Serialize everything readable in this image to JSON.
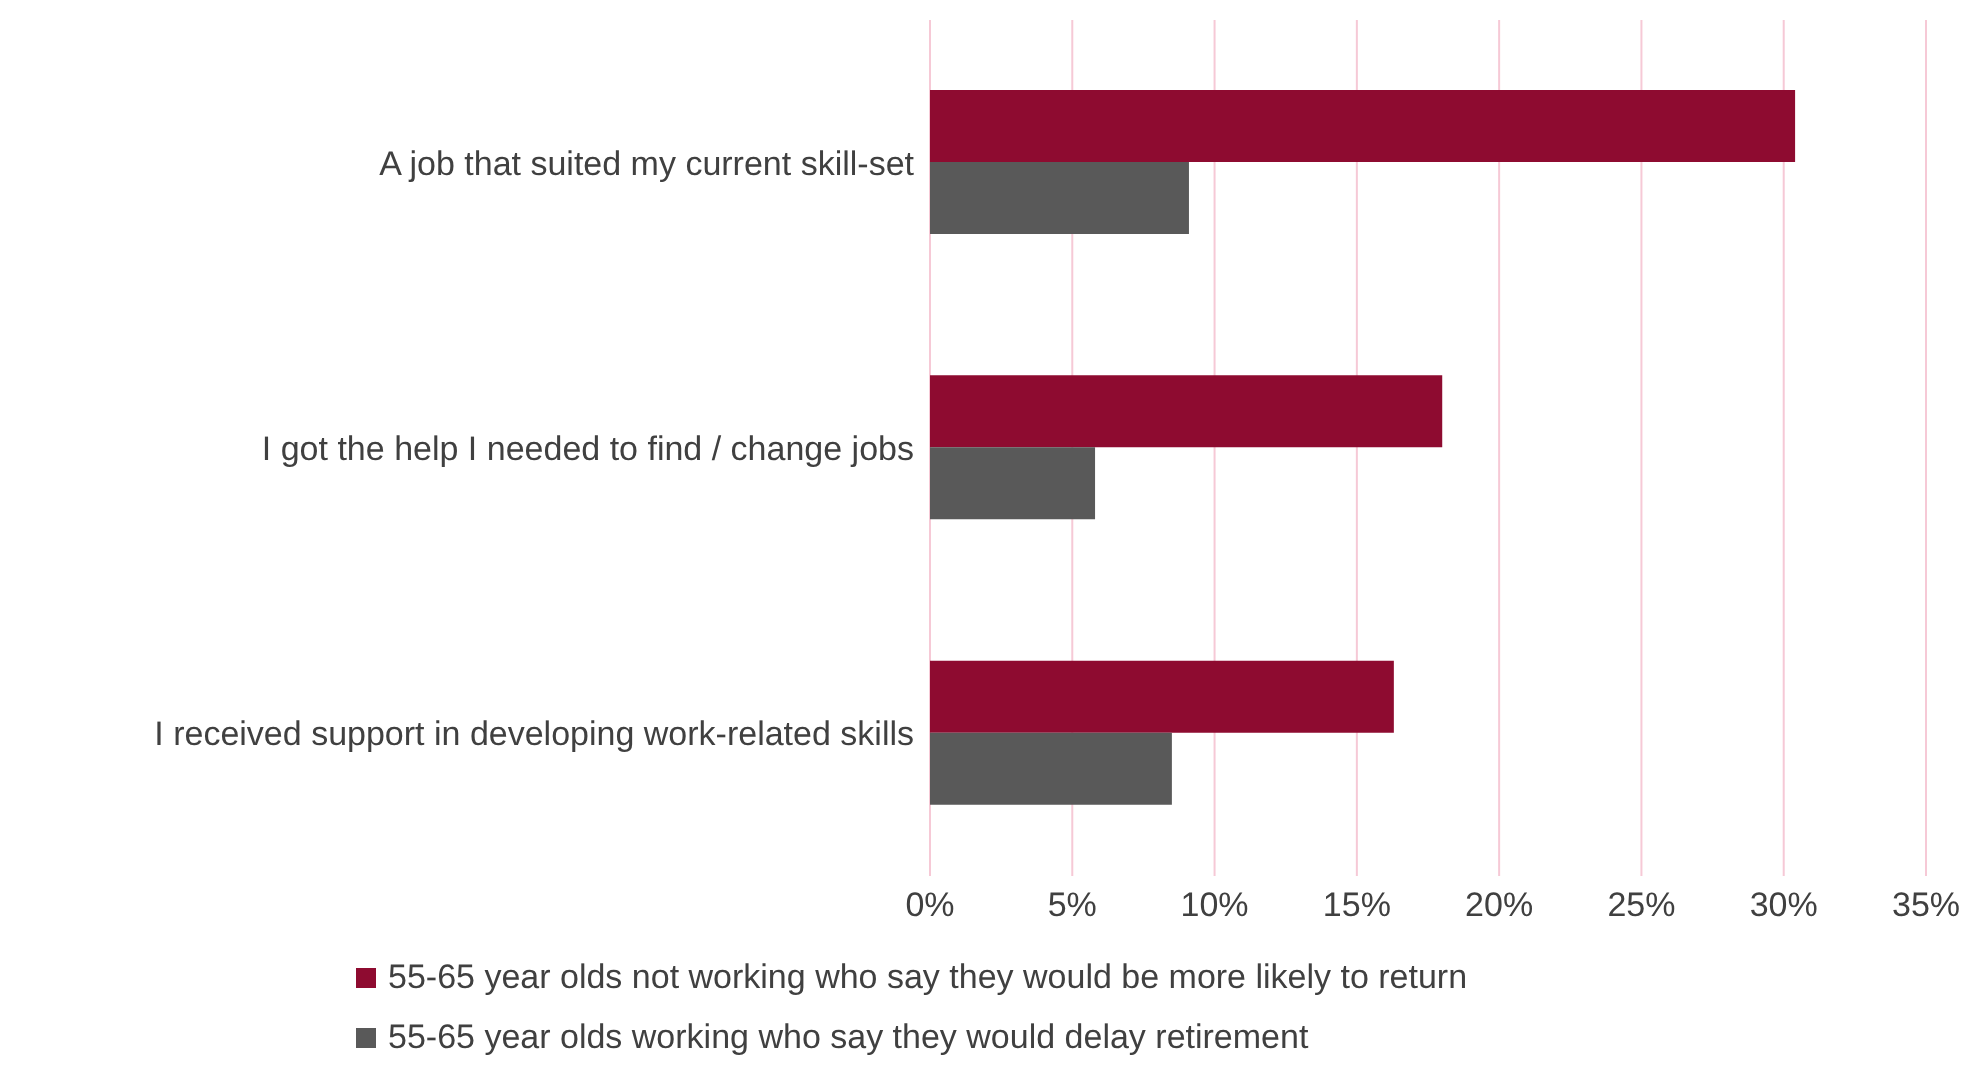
{
  "chart_data": {
    "type": "bar",
    "orientation": "horizontal",
    "categories": [
      "A job that suited my current skill-set",
      "I got the help I needed to find / change jobs",
      "I received support in  developing work-related skills"
    ],
    "series": [
      {
        "name": "55-65 year olds not working who say they would be more likely to return",
        "color": "#8e0b30",
        "values": [
          30.4,
          18.0,
          16.3
        ]
      },
      {
        "name": "55-65 year olds working who say they would delay retirement",
        "color": "#595959",
        "values": [
          9.1,
          5.8,
          8.5
        ]
      }
    ],
    "xlim": [
      0,
      35
    ],
    "xticks": [
      {
        "value": 0,
        "label": "0%"
      },
      {
        "value": 5,
        "label": "5%"
      },
      {
        "value": 10,
        "label": "10%"
      },
      {
        "value": 15,
        "label": "15%"
      },
      {
        "value": 20,
        "label": "20%"
      },
      {
        "value": 25,
        "label": "25%"
      },
      {
        "value": 30,
        "label": "30%"
      },
      {
        "value": 35,
        "label": "35%"
      }
    ],
    "grid": "x",
    "legend": "bottom"
  }
}
